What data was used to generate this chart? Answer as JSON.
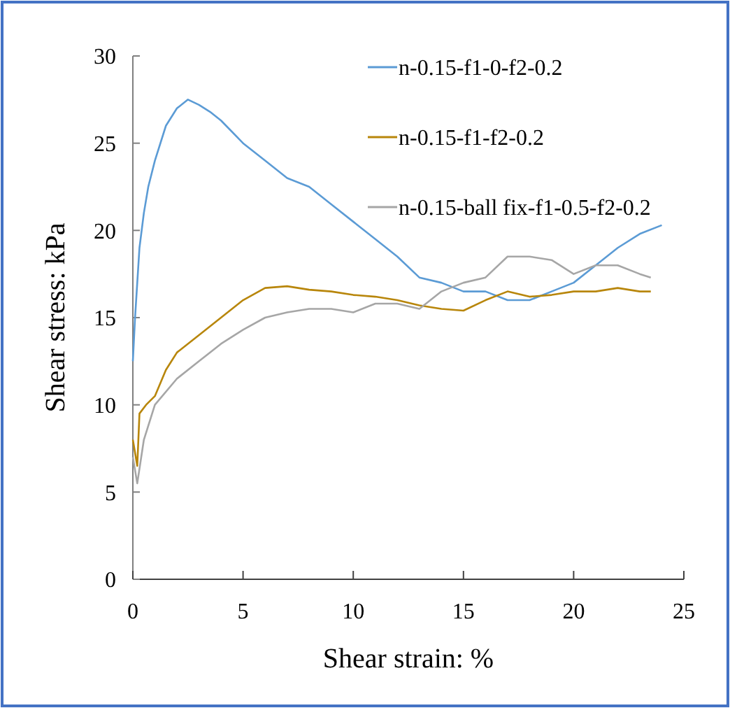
{
  "chart_data": {
    "type": "line",
    "xlabel": "Shear strain: %",
    "ylabel": "Shear stress: kPa",
    "xlim": [
      0,
      25
    ],
    "xticks": [
      0,
      5,
      10,
      15,
      20,
      25
    ],
    "ylim": [
      0,
      30
    ],
    "yticks": [
      0,
      5,
      10,
      15,
      20,
      25,
      30
    ],
    "grid": false,
    "legend": "top right",
    "marker": "none",
    "line_style": "solid",
    "series": [
      {
        "name": "n-0.15-f1-0-f2-0.2",
        "color": "#5b9bd5",
        "x": [
          0,
          0.1,
          0.2,
          0.3,
          0.5,
          0.7,
          1,
          1.5,
          2,
          2.5,
          3,
          3.5,
          4,
          5,
          6,
          7,
          8,
          9,
          10,
          11,
          12,
          13,
          14,
          15,
          16,
          17,
          18,
          19,
          20,
          21,
          22,
          23,
          24
        ],
        "values": [
          12.5,
          15,
          17,
          19,
          21,
          22.5,
          24,
          26,
          27,
          27.5,
          27.2,
          26.8,
          26.3,
          25,
          24,
          23,
          22.5,
          21.5,
          20.5,
          19.5,
          18.5,
          17.3,
          17,
          16.5,
          16.5,
          16,
          16,
          16.5,
          17,
          18,
          19,
          19.8,
          20.3
        ]
      },
      {
        "name": "n-0.15-f1-f2-0.2",
        "color": "#b8860b",
        "x": [
          0,
          0.2,
          0.3,
          0.6,
          1,
          1.5,
          2,
          3,
          4,
          5,
          6,
          7,
          8,
          9,
          10,
          11,
          12,
          13,
          14,
          15,
          16,
          17,
          18,
          19,
          20,
          21,
          22,
          23,
          23.5
        ],
        "values": [
          8,
          6.5,
          9.5,
          10,
          10.5,
          12,
          13,
          14,
          15,
          16,
          16.7,
          16.8,
          16.6,
          16.5,
          16.3,
          16.2,
          16,
          15.7,
          15.5,
          15.4,
          16,
          16.5,
          16.2,
          16.3,
          16.5,
          16.5,
          16.7,
          16.5,
          16.5
        ]
      },
      {
        "name": "n-0.15-ball fix-f1-0.5-f2-0.2",
        "color": "#a6a6a6",
        "x": [
          0,
          0.2,
          0.5,
          1,
          2,
          3,
          4,
          5,
          6,
          7,
          8,
          9,
          10,
          11,
          12,
          13,
          14,
          15,
          16,
          17,
          18,
          19,
          20,
          21,
          22,
          23,
          23.5
        ],
        "values": [
          7,
          5.5,
          8,
          10,
          11.5,
          12.5,
          13.5,
          14.3,
          15,
          15.3,
          15.5,
          15.5,
          15.3,
          15.8,
          15.8,
          15.5,
          16.5,
          17,
          17.3,
          18.5,
          18.5,
          18.3,
          17.5,
          18,
          18,
          17.5,
          17.3
        ]
      }
    ]
  }
}
